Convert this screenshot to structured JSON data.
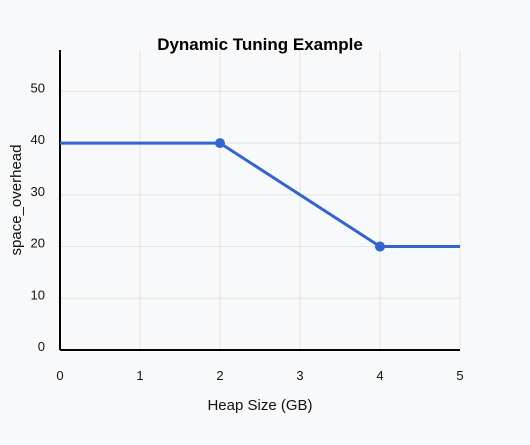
{
  "chart_data": {
    "type": "line",
    "title": "Dynamic Tuning Example",
    "xlabel": "Heap Size (GB)",
    "ylabel": "space_overhead",
    "xlim": [
      0,
      5
    ],
    "ylim": [
      0,
      58
    ],
    "x_ticks": [
      0,
      1,
      2,
      3,
      4,
      5
    ],
    "y_ticks": [
      0,
      10,
      20,
      30,
      40,
      50
    ],
    "grid": true,
    "series": [
      {
        "color": "#3366cc",
        "x": [
          0,
          2,
          4,
          5
        ],
        "y": [
          40,
          40,
          20,
          20
        ],
        "markers_at_x": [
          2,
          4
        ]
      }
    ]
  },
  "colors": {
    "background": "#f8f9fa",
    "grid": "#e3e3e3",
    "axis": "#000000",
    "line": "#3366cc"
  }
}
